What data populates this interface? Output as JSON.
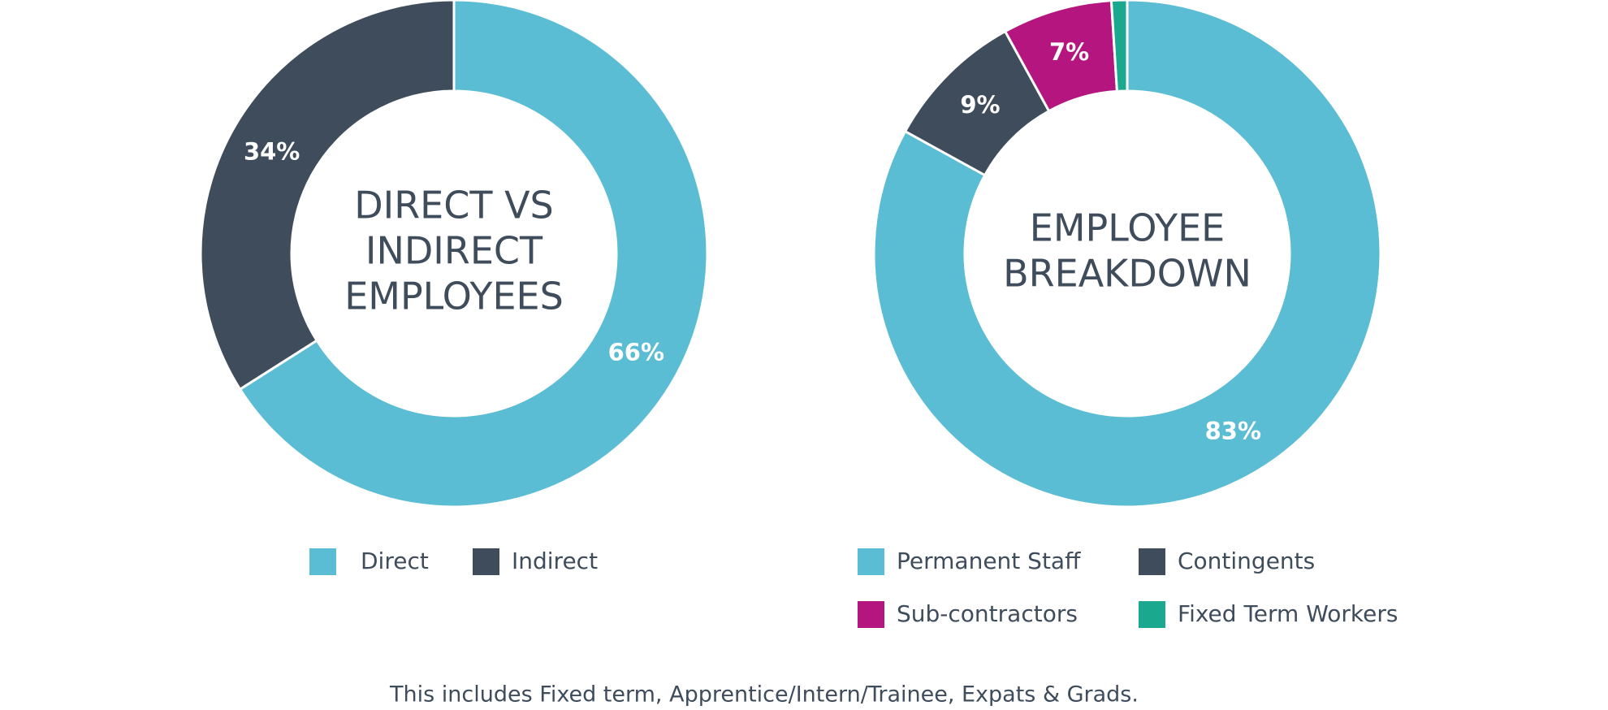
{
  "chart_data": [
    {
      "type": "donut",
      "title": [
        "DIRECT VS",
        "INDIRECT",
        "EMPLOYEES"
      ],
      "categories": [
        "Direct",
        "Indirect"
      ],
      "values": [
        66,
        34
      ],
      "value_labels": [
        "66%",
        "34%"
      ],
      "colors": [
        "#5bbdd4",
        "#3f4c5c"
      ]
    },
    {
      "type": "donut",
      "title": [
        "EMPLOYEE",
        "BREAKDOWN"
      ],
      "categories": [
        "Permanent Staff",
        "Contingents",
        "Sub-contractors",
        "Fixed Term Workers"
      ],
      "values": [
        83,
        9,
        7,
        1
      ],
      "value_labels": [
        "83%",
        "9%",
        "7%",
        null
      ],
      "colors": [
        "#5bbdd4",
        "#3f4c5c",
        "#b5157f",
        "#1aa98f"
      ]
    }
  ],
  "footnote": "This includes Fixed term, Apprentice/Intern/Trainee, Expats & Grads."
}
